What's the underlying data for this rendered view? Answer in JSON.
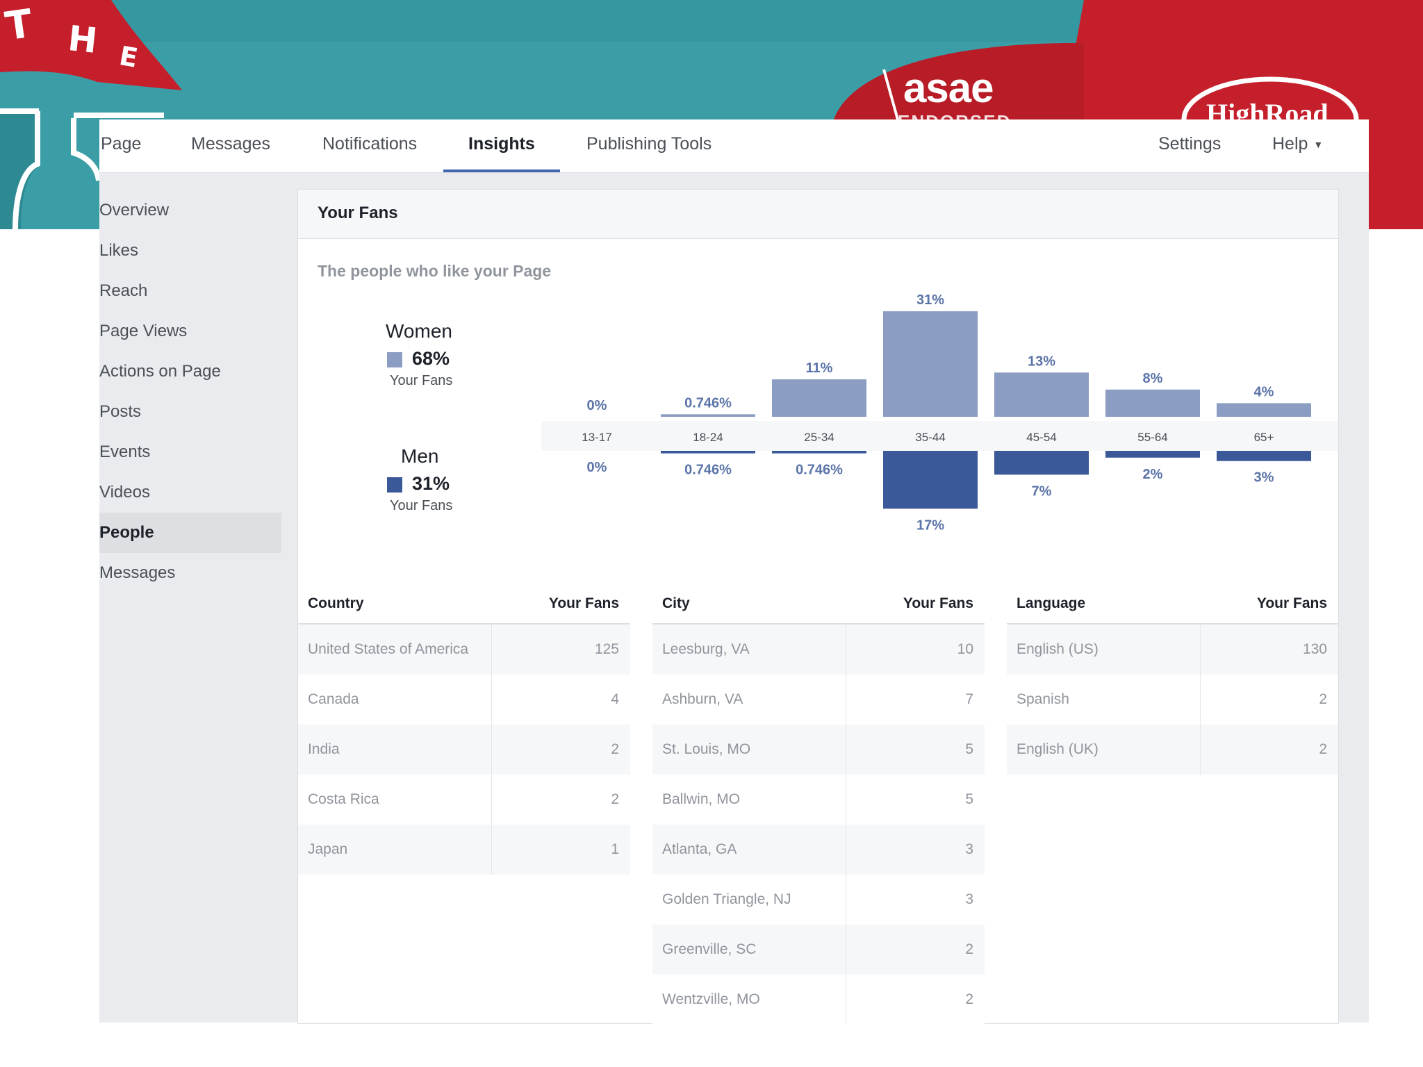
{
  "banner": {
    "the_letters": [
      "T",
      "H",
      "E"
    ],
    "asae": "asae",
    "asae_sub": "ENDORSED",
    "highroad": "HighRoad"
  },
  "colors": {
    "teal": "#3b9ea6",
    "red": "#c51f2c",
    "women_bar": "#8b9dc3",
    "men_bar": "#3b5998",
    "accent": "#4267b2"
  },
  "topnav": {
    "items": [
      "Page",
      "Messages",
      "Notifications",
      "Insights",
      "Publishing Tools"
    ],
    "active": "Insights",
    "settings": "Settings",
    "help": "Help",
    "help_caret": "▼"
  },
  "sidebar": {
    "items": [
      "Overview",
      "Likes",
      "Reach",
      "Page Views",
      "Actions on Page",
      "Posts",
      "Events",
      "Videos",
      "People",
      "Messages"
    ],
    "active": "People"
  },
  "card": {
    "title": "Your Fans",
    "subtitle": "The people who like your Page"
  },
  "legend": {
    "women": {
      "label": "Women",
      "pct": "68%",
      "sub": "Your Fans"
    },
    "men": {
      "label": "Men",
      "pct": "31%",
      "sub": "Your Fans"
    }
  },
  "chart_data": {
    "type": "bar",
    "categories": [
      "13-17",
      "18-24",
      "25-34",
      "35-44",
      "45-54",
      "55-64",
      "65+"
    ],
    "series": [
      {
        "name": "Women",
        "values": [
          0,
          0.746,
          11,
          31,
          13,
          8,
          4
        ],
        "labels": [
          "0%",
          "0.746%",
          "11%",
          "31%",
          "13%",
          "8%",
          "4%"
        ]
      },
      {
        "name": "Men",
        "values": [
          0,
          0.746,
          0.746,
          17,
          7,
          2,
          3
        ],
        "labels": [
          "0%",
          "0.746%",
          "0.746%",
          "17%",
          "7%",
          "2%",
          "3%"
        ]
      }
    ]
  },
  "tables": {
    "country": {
      "headers": [
        "Country",
        "Your Fans"
      ],
      "rows": [
        [
          "United States of America",
          "125"
        ],
        [
          "Canada",
          "4"
        ],
        [
          "India",
          "2"
        ],
        [
          "Costa Rica",
          "2"
        ],
        [
          "Japan",
          "1"
        ]
      ]
    },
    "city": {
      "headers": [
        "City",
        "Your Fans"
      ],
      "rows": [
        [
          "Leesburg, VA",
          "10"
        ],
        [
          "Ashburn, VA",
          "7"
        ],
        [
          "St. Louis, MO",
          "5"
        ],
        [
          "Ballwin, MO",
          "5"
        ],
        [
          "Atlanta, GA",
          "3"
        ],
        [
          "Golden Triangle, NJ",
          "3"
        ],
        [
          "Greenville, SC",
          "2"
        ],
        [
          "Wentzville, MO",
          "2"
        ]
      ]
    },
    "language": {
      "headers": [
        "Language",
        "Your Fans"
      ],
      "rows": [
        [
          "English (US)",
          "130"
        ],
        [
          "Spanish",
          "2"
        ],
        [
          "English (UK)",
          "2"
        ]
      ]
    }
  }
}
